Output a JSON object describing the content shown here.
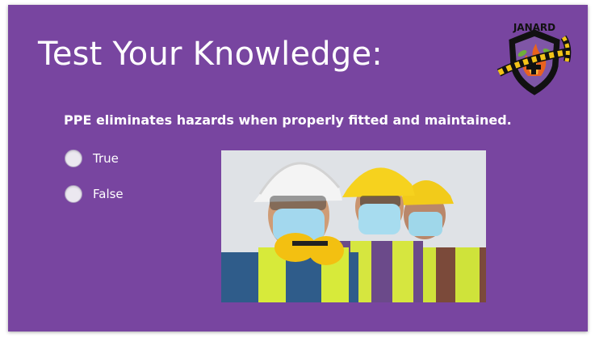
{
  "slide": {
    "title": "Test Your Knowledge:",
    "question": "PPE eliminates hazards when properly fitted and maintained.",
    "options": [
      {
        "label": "True",
        "selected": false
      },
      {
        "label": "False",
        "selected": false
      }
    ],
    "logo_text": "JANARD",
    "image_alt": "construction workers wearing hard hats, safety glasses, face masks and high-visibility vests"
  },
  "colors": {
    "background": "#7845a0",
    "text": "#ffffff",
    "radio_fill": "#ebe8f0",
    "logo_yellow": "#f2c318",
    "logo_orange": "#e8621f"
  }
}
